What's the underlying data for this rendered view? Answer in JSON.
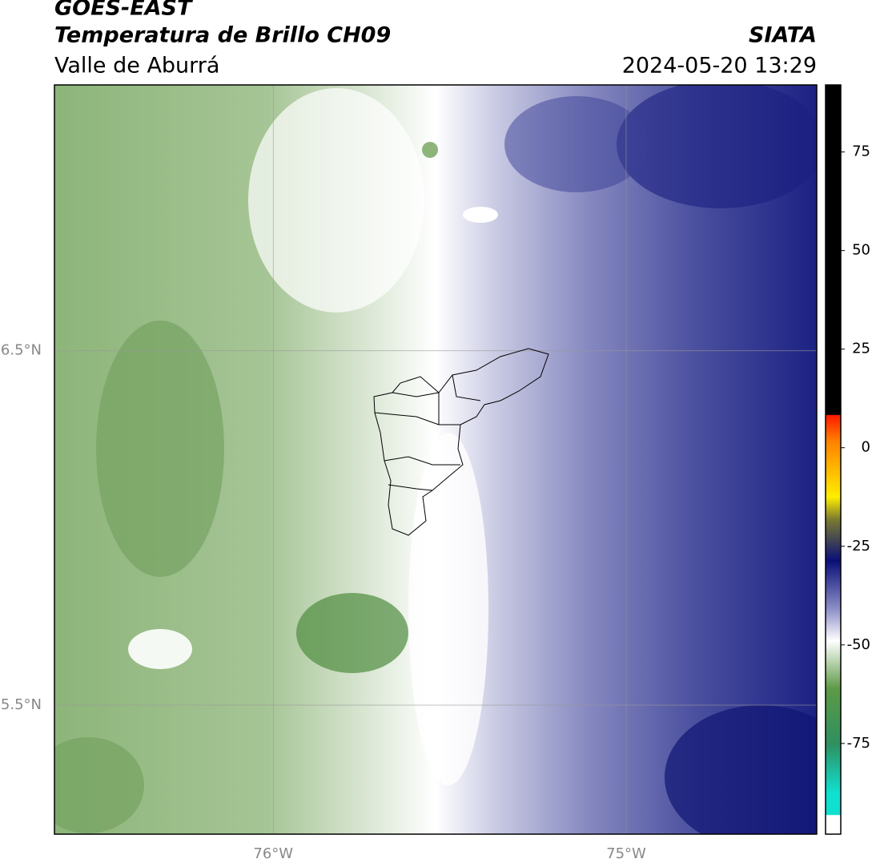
{
  "header": {
    "title": "GOES-EAST",
    "subtitle": "Temperatura de Brillo CH09",
    "region": "Valle de Aburrá",
    "source": "SIATA",
    "datetime": "2024-05-20 13:29"
  },
  "map": {
    "xlim": [
      -76.62,
      -74.46
    ],
    "ylim": [
      5.136,
      7.25
    ],
    "xticks": [
      {
        "value": -76,
        "label": "76°W"
      },
      {
        "value": -75,
        "label": "75°W"
      }
    ],
    "yticks": [
      {
        "value": 6.5,
        "label": "6.5°N"
      },
      {
        "value": 5.5,
        "label": "5.5°N"
      }
    ]
  },
  "colorbar": {
    "lim": [
      -98,
      92
    ],
    "ticks": [
      75,
      50,
      25,
      0,
      -25,
      -50,
      -75
    ]
  }
}
